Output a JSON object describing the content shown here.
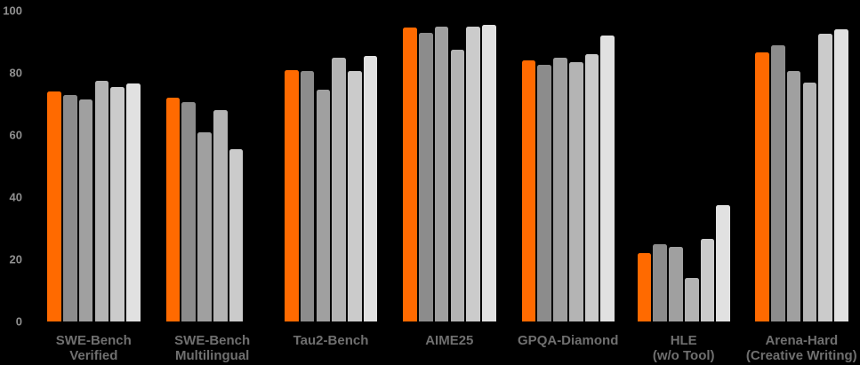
{
  "chart_data": {
    "type": "bar",
    "title": "",
    "xlabel": "",
    "ylabel": "",
    "ylim": [
      0,
      100
    ],
    "yticks": [
      0,
      20,
      40,
      60,
      80,
      100
    ],
    "grid": false,
    "legend": "none",
    "background_color": "#000000",
    "ytick_label_color": "#8f8f8f",
    "category_label_color": "#6f6f6f",
    "categories": [
      "SWE-Bench Verified",
      "SWE-Bench Multilingual",
      "Tau2-Bench",
      "AIME25",
      "GPQA-Diamond",
      "HLE (w/o Tool)",
      "Arena-Hard (Creative Writing)"
    ],
    "category_label_lines": [
      [
        "SWE-Bench",
        "Verified"
      ],
      [
        "SWE-Bench",
        "Multilingual"
      ],
      [
        "Tau2-Bench"
      ],
      [
        "AIME25"
      ],
      [
        "GPQA-Diamond"
      ],
      [
        "HLE",
        "(w/o Tool)"
      ],
      [
        "Arena-Hard",
        "(Creative Writing)"
      ]
    ],
    "series": [
      {
        "name": "series-1-orange",
        "color": "#ff6a00",
        "values": [
          74,
          72,
          81,
          94.5,
          84,
          22,
          86.5
        ]
      },
      {
        "name": "series-2-gray-darkest",
        "color": "#8c8c8c",
        "values": [
          73,
          70.5,
          80.5,
          93,
          82.5,
          25,
          89
        ]
      },
      {
        "name": "series-3-gray-dark",
        "color": "#a0a0a0",
        "values": [
          71.5,
          61,
          74.5,
          95,
          85,
          24,
          80.5
        ]
      },
      {
        "name": "series-4-gray-medium",
        "color": "#b4b4b4",
        "values": [
          77.5,
          68,
          85,
          87.5,
          83.5,
          14,
          77
        ]
      },
      {
        "name": "series-5-gray-light",
        "color": "#cbcbcb",
        "values": [
          75.5,
          55.5,
          80.5,
          95,
          86,
          26.5,
          92.5
        ]
      },
      {
        "name": "series-6-gray-lightest",
        "color": "#e1e1e1",
        "values": [
          76.5,
          null,
          85.5,
          95.5,
          92,
          37.5,
          94
        ]
      }
    ]
  }
}
